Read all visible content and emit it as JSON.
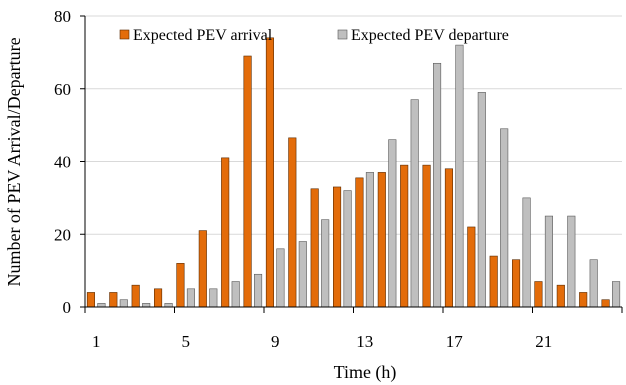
{
  "chart_data": {
    "type": "bar",
    "xlabel": "Time (h)",
    "ylabel": "Number of PEV Arrival/Departure",
    "ylim": [
      0,
      80
    ],
    "yticks": [
      0,
      20,
      40,
      60,
      80
    ],
    "xtick_labels": [
      "1",
      "5",
      "9",
      "13",
      "17",
      "21"
    ],
    "categories": [
      "1",
      "2",
      "3",
      "4",
      "5",
      "6",
      "7",
      "8",
      "9",
      "10",
      "11",
      "12",
      "13",
      "14",
      "15",
      "16",
      "17",
      "18",
      "19",
      "20",
      "21",
      "22",
      "23",
      "24"
    ],
    "grid": "horizontal",
    "legend": "top, inside plot",
    "series": [
      {
        "name": "Expected PEV arrival",
        "color": "#E36C0A",
        "values": [
          4,
          4,
          6,
          5,
          12,
          21,
          41,
          69,
          74,
          46.5,
          32.5,
          33,
          35.5,
          37,
          39,
          39,
          38,
          22,
          14,
          13,
          7,
          6,
          4,
          2
        ]
      },
      {
        "name": "Expected PEV departure",
        "color": "#BFBFBF",
        "values": [
          1,
          2,
          1,
          1,
          5,
          5,
          7,
          9,
          16,
          18,
          24,
          32,
          37,
          46,
          57,
          67,
          72,
          59,
          49,
          30,
          25,
          25,
          13,
          7
        ]
      }
    ]
  }
}
